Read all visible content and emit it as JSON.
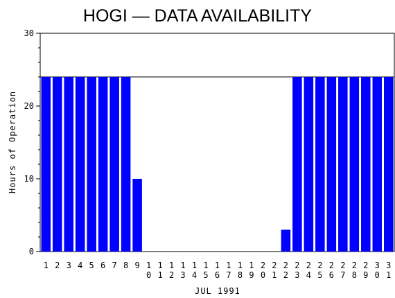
{
  "chart_data": {
    "type": "bar",
    "title": "HOGI — DATA AVAILABILITY",
    "xlabel": "JUL 1991",
    "ylabel": "Hours of Operation",
    "ylim": [
      0,
      30
    ],
    "yticks": [
      "0",
      "10",
      "20",
      "30"
    ],
    "reference_line": 24,
    "bar_color": "#0000ff",
    "categories": [
      "1",
      "2",
      "3",
      "4",
      "5",
      "6",
      "7",
      "8",
      "9",
      "10",
      "11",
      "12",
      "13",
      "14",
      "15",
      "16",
      "17",
      "18",
      "19",
      "20",
      "21",
      "22",
      "23",
      "24",
      "25",
      "26",
      "27",
      "28",
      "29",
      "30",
      "31"
    ],
    "values": [
      24,
      24,
      24,
      24,
      24,
      24,
      24,
      24,
      10,
      0,
      0,
      0,
      0,
      0,
      0,
      0,
      0,
      0,
      0,
      0,
      0,
      3,
      24,
      24,
      24,
      24,
      24,
      24,
      24,
      24,
      24
    ]
  }
}
